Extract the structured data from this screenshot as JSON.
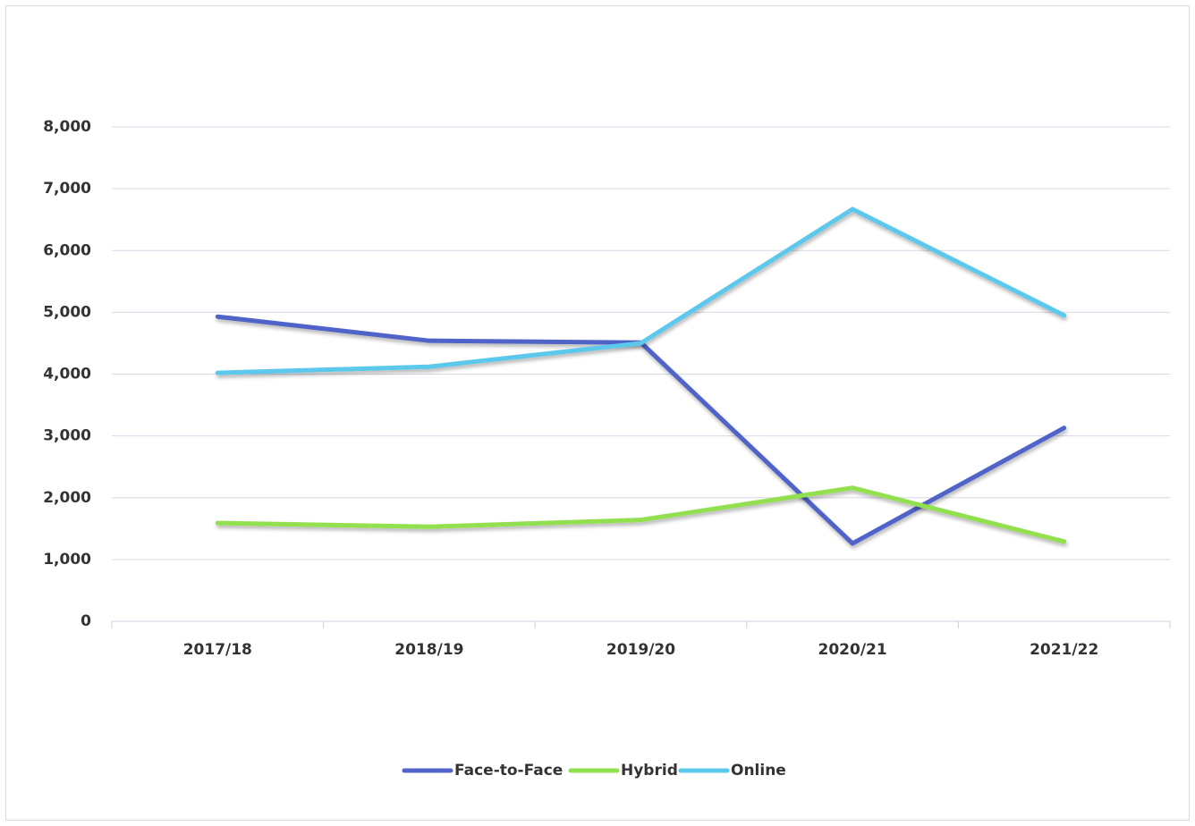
{
  "chart_data": {
    "type": "line",
    "categories": [
      "2017/18",
      "2018/19",
      "2019/20",
      "2020/21",
      "2021/22"
    ],
    "series": [
      {
        "name": "Face-to-Face",
        "color": "#4f63c8",
        "values": [
          4930,
          4540,
          4510,
          1260,
          3130
        ]
      },
      {
        "name": "Hybrid",
        "color": "#92e04f",
        "values": [
          1590,
          1530,
          1640,
          2160,
          1290
        ]
      },
      {
        "name": "Online",
        "color": "#5bc8ec",
        "values": [
          4020,
          4120,
          4500,
          6670,
          4950
        ]
      }
    ],
    "ylim": [
      0,
      8000
    ],
    "yticks": [
      0,
      {
        "value": 1000,
        "label": "1,000"
      },
      {
        "value": 2000,
        "label": "2,000"
      },
      {
        "value": 3000,
        "label": "3,000"
      },
      {
        "value": 4000,
        "label": "4,000"
      },
      {
        "value": 5000,
        "label": "5,000"
      },
      {
        "value": 6000,
        "label": "6,000"
      },
      {
        "value": 7000,
        "label": "7,000"
      },
      {
        "value": 8000,
        "label": "8,000"
      }
    ],
    "grid": true,
    "legend": "bottom"
  }
}
